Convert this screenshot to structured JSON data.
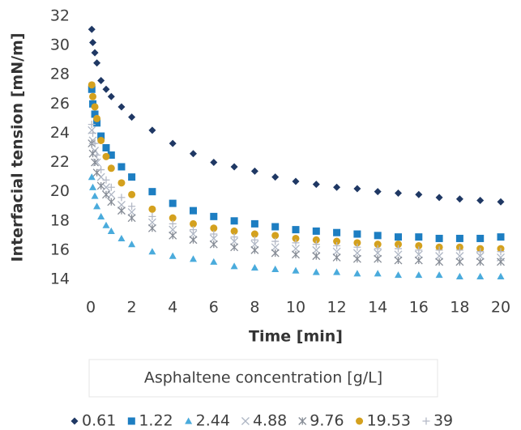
{
  "chart_data": {
    "type": "scatter",
    "ylabel": "Interfacial tension [mN/m]",
    "xlabel": "Time [min]",
    "legend_title": "Asphaltene concentration [g/L]",
    "legend": "bottom",
    "grid": false,
    "xlim": [
      0,
      20
    ],
    "xticks": [
      0,
      2,
      4,
      6,
      8,
      10,
      12,
      14,
      16,
      18,
      20
    ],
    "ylim": [
      14,
      32
    ],
    "yticks": [
      14,
      16,
      18,
      20,
      22,
      24,
      26,
      28,
      30,
      32
    ],
    "x": [
      0.05,
      0.1,
      0.2,
      0.3,
      0.5,
      0.75,
      1,
      1.5,
      2,
      3,
      4,
      5,
      6,
      7,
      8,
      9,
      10,
      11,
      12,
      13,
      14,
      15,
      16,
      17,
      18,
      19,
      20
    ],
    "series": [
      {
        "name": "0.61",
        "color": "#1f3864",
        "marker": "diamond",
        "values": [
          31.1,
          30.2,
          29.5,
          28.8,
          27.6,
          27,
          26.5,
          25.8,
          25.1,
          24.2,
          23.3,
          22.6,
          22,
          21.7,
          21.4,
          21,
          20.7,
          20.5,
          20.3,
          20.2,
          20,
          19.9,
          19.8,
          19.6,
          19.5,
          19.4,
          19.3
        ]
      },
      {
        "name": "1.22",
        "color": "#1d7ec2",
        "marker": "square",
        "values": [
          27,
          26,
          25.3,
          24.7,
          23.8,
          23,
          22.5,
          21.7,
          21,
          20,
          19.2,
          18.7,
          18.3,
          18,
          17.8,
          17.6,
          17.4,
          17.3,
          17.2,
          17.1,
          17,
          16.9,
          16.9,
          16.8,
          16.8,
          16.8,
          16.9
        ]
      },
      {
        "name": "2.44",
        "color": "#4aabdc",
        "marker": "triangle",
        "values": [
          21,
          20.3,
          19.7,
          19,
          18.3,
          17.7,
          17.3,
          16.8,
          16.4,
          15.9,
          15.6,
          15.4,
          15.2,
          14.9,
          14.8,
          14.7,
          14.6,
          14.5,
          14.5,
          14.4,
          14.4,
          14.3,
          14.3,
          14.3,
          14.2,
          14.2,
          14.2
        ]
      },
      {
        "name": "4.88",
        "color": "#aeb6c4",
        "marker": "x",
        "values": [
          24.2,
          23.5,
          22.8,
          22,
          21,
          20.3,
          19.8,
          19.1,
          18.6,
          17.9,
          17.4,
          17.1,
          16.8,
          16.6,
          16.4,
          16.2,
          16.1,
          16,
          15.9,
          15.8,
          15.8,
          15.7,
          15.7,
          15.6,
          15.6,
          15.6,
          15.5
        ]
      },
      {
        "name": "9.76",
        "color": "#868c96",
        "marker": "star",
        "values": [
          23.3,
          22.6,
          22,
          21.3,
          20.4,
          19.8,
          19.3,
          18.7,
          18.2,
          17.5,
          17,
          16.7,
          16.4,
          16.2,
          16,
          15.8,
          15.7,
          15.6,
          15.5,
          15.4,
          15.4,
          15.3,
          15.3,
          15.2,
          15.2,
          15.2,
          15.2
        ]
      },
      {
        "name": "19.53",
        "color": "#d4a11e",
        "marker": "circle",
        "values": [
          27.3,
          26.5,
          25.8,
          25,
          23.5,
          22.4,
          21.6,
          20.6,
          19.8,
          18.8,
          18.2,
          17.8,
          17.5,
          17.3,
          17.1,
          17,
          16.8,
          16.7,
          16.6,
          16.5,
          16.4,
          16.4,
          16.3,
          16.2,
          16.2,
          16.1,
          16.1
        ]
      },
      {
        "name": "39",
        "color": "#b4b9c6",
        "marker": "plus",
        "values": [
          24.6,
          24,
          23.3,
          22.5,
          21.5,
          20.8,
          20.3,
          19.6,
          19,
          18.3,
          17.8,
          17.4,
          17.1,
          16.9,
          16.7,
          16.6,
          16.5,
          16.4,
          16.3,
          16.2,
          16.1,
          16.1,
          16,
          16,
          16,
          15.9,
          15.9
        ]
      }
    ]
  }
}
